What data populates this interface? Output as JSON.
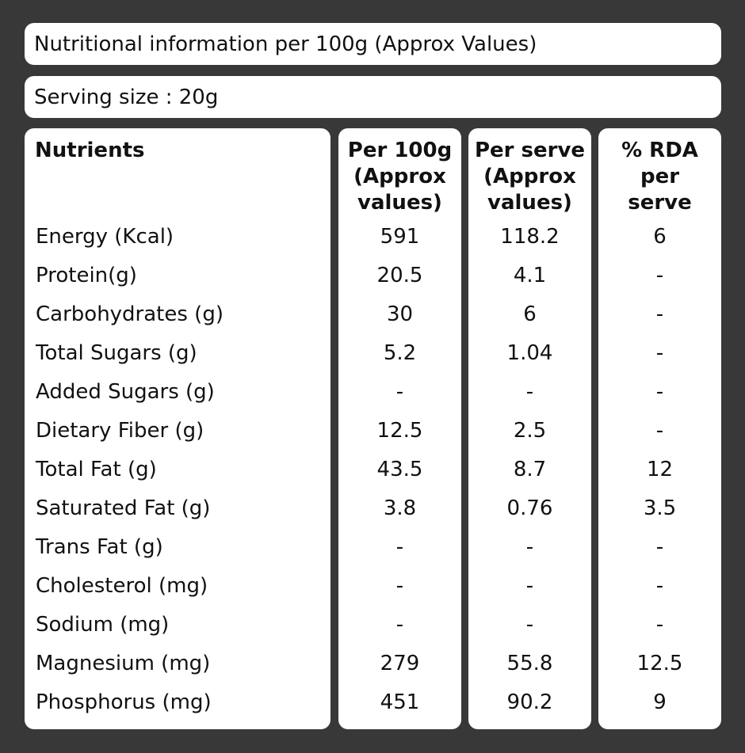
{
  "title": "Nutritional information per 100g (Approx Values)",
  "serving_size": "Serving size : 20g",
  "columns": {
    "nutrients": "Nutrients",
    "per_100g": "Per 100g\n(Approx\nvalues)",
    "per_serve": "Per serve\n(Approx\nvalues)",
    "rda": "% RDA\nper\nserve"
  },
  "rows": [
    {
      "nutrient": "Energy (Kcal)",
      "per_100g": "591",
      "per_serve": "118.2",
      "rda": "6"
    },
    {
      "nutrient": "Protein(g)",
      "per_100g": "20.5",
      "per_serve": "4.1",
      "rda": "-"
    },
    {
      "nutrient": "Carbohydrates (g)",
      "per_100g": "30",
      "per_serve": "6",
      "rda": "-"
    },
    {
      "nutrient": "Total Sugars (g)",
      "per_100g": "5.2",
      "per_serve": "1.04",
      "rda": "-"
    },
    {
      "nutrient": "Added Sugars (g)",
      "per_100g": "-",
      "per_serve": "-",
      "rda": "-"
    },
    {
      "nutrient": "Dietary Fiber (g)",
      "per_100g": "12.5",
      "per_serve": "2.5",
      "rda": "-"
    },
    {
      "nutrient": "Total Fat (g)",
      "per_100g": "43.5",
      "per_serve": "8.7",
      "rda": "12"
    },
    {
      "nutrient": "Saturated Fat (g)",
      "per_100g": "3.8",
      "per_serve": "0.76",
      "rda": "3.5"
    },
    {
      "nutrient": "Trans Fat (g)",
      "per_100g": "-",
      "per_serve": "-",
      "rda": "-"
    },
    {
      "nutrient": "Cholesterol (mg)",
      "per_100g": "-",
      "per_serve": "-",
      "rda": "-"
    },
    {
      "nutrient": "Sodium (mg)",
      "per_100g": "-",
      "per_serve": "-",
      "rda": "-"
    },
    {
      "nutrient": "Magnesium (mg)",
      "per_100g": "279",
      "per_serve": "55.8",
      "rda": "12.5"
    },
    {
      "nutrient": "Phosphorus (mg)",
      "per_100g": "451",
      "per_serve": "90.2",
      "rda": "9"
    }
  ],
  "colors": {
    "background": "#383838",
    "panel": "#ffffff",
    "text": "#111111"
  }
}
